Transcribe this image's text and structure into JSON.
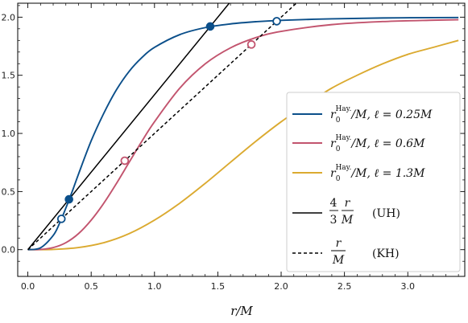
{
  "chart_data": {
    "type": "line",
    "title": "",
    "xlabel": "r/M",
    "ylabel": "",
    "xlim": [
      -0.08,
      3.45
    ],
    "ylim": [
      -0.23,
      2.12
    ],
    "xticks": [
      "0.0",
      "0.5",
      "1.0",
      "1.5",
      "2.0",
      "2.5",
      "3.0"
    ],
    "yticks": [
      "0.0",
      "0.5",
      "1.0",
      "1.5",
      "2.0"
    ],
    "grid": false,
    "legend_position": "lower-right",
    "series": [
      {
        "name": "r0^Hay./M, ℓ = 0.25M",
        "color": "#0b4f8a",
        "style": "solid",
        "x": [
          0.0,
          0.1,
          0.2,
          0.25,
          0.3,
          0.35,
          0.4,
          0.5,
          0.6,
          0.7,
          0.8,
          0.9,
          1.0,
          1.2,
          1.4,
          1.6,
          1.8,
          2.0,
          2.4,
          2.8,
          3.2,
          3.4
        ],
        "y": [
          0.0,
          0.016,
          0.122,
          0.226,
          0.358,
          0.5,
          0.65,
          0.936,
          1.174,
          1.376,
          1.534,
          1.652,
          1.74,
          1.85,
          1.91,
          1.942,
          1.961,
          1.973,
          1.986,
          1.993,
          1.996,
          1.997
        ]
      },
      {
        "name": "r0^Hay./M, ℓ = 0.6M",
        "color": "#c2546e",
        "style": "solid",
        "x": [
          0.0,
          0.1,
          0.2,
          0.3,
          0.4,
          0.5,
          0.6,
          0.7,
          0.8,
          0.9,
          1.0,
          1.2,
          1.4,
          1.6,
          1.8,
          2.0,
          2.4,
          2.8,
          3.2,
          3.4
        ],
        "y": [
          0.0,
          0.002,
          0.018,
          0.06,
          0.138,
          0.254,
          0.4,
          0.57,
          0.752,
          0.932,
          1.1,
          1.39,
          1.598,
          1.736,
          1.824,
          1.878,
          1.936,
          1.962,
          1.974,
          1.978
        ]
      },
      {
        "name": "r0^Hay./M, ℓ = 1.3M",
        "color": "#dbaa30",
        "style": "solid",
        "x": [
          0.0,
          0.2,
          0.4,
          0.6,
          0.8,
          1.0,
          1.2,
          1.4,
          1.6,
          1.8,
          2.0,
          2.2,
          2.4,
          2.6,
          2.8,
          3.0,
          3.2,
          3.4
        ],
        "y": [
          0.0,
          0.002,
          0.018,
          0.06,
          0.138,
          0.254,
          0.4,
          0.57,
          0.752,
          0.932,
          1.1,
          1.25,
          1.39,
          1.5,
          1.598,
          1.68,
          1.74,
          1.8
        ]
      },
      {
        "name": "4/3 r/M (UH)",
        "color": "#000000",
        "style": "solid",
        "x": [
          0.0,
          1.65
        ],
        "y": [
          0.0,
          2.2
        ]
      },
      {
        "name": "r/M (KH)",
        "color": "#000000",
        "style": "dashed",
        "x": [
          0.0,
          2.2
        ],
        "y": [
          0.0,
          2.2
        ]
      }
    ],
    "markers": [
      {
        "x": 0.325,
        "y": 0.433,
        "fill": "filled",
        "color": "#0b4f8a"
      },
      {
        "x": 1.44,
        "y": 1.92,
        "fill": "filled",
        "color": "#0b4f8a"
      },
      {
        "x": 0.265,
        "y": 0.265,
        "fill": "open",
        "color": "#0b4f8a"
      },
      {
        "x": 1.965,
        "y": 1.965,
        "fill": "open",
        "color": "#0b4f8a"
      },
      {
        "x": 0.765,
        "y": 0.765,
        "fill": "open",
        "color": "#c2546e"
      },
      {
        "x": 1.765,
        "y": 1.765,
        "fill": "open",
        "color": "#c2546e"
      }
    ]
  },
  "legend": {
    "entries": [
      {
        "prefix": "r",
        "sub": "0",
        "sup": "Hay.",
        "mid": "/M, ",
        "param": "ℓ = 0.25M",
        "color": "#0b4f8a",
        "style": "solid"
      },
      {
        "prefix": "r",
        "sub": "0",
        "sup": "Hay.",
        "mid": "/M, ",
        "param": "ℓ = 0.6M",
        "color": "#c2546e",
        "style": "solid"
      },
      {
        "prefix": "r",
        "sub": "0",
        "sup": "Hay.",
        "mid": "/M, ",
        "param": "ℓ = 1.3M",
        "color": "#dbaa30",
        "style": "solid"
      }
    ],
    "uh": {
      "num": "4",
      "den": "3",
      "frac_num": "r",
      "frac_den": "M",
      "tag": "(UH)"
    },
    "kh": {
      "frac_num": "r",
      "frac_den": "M",
      "tag": "(KH)"
    }
  }
}
